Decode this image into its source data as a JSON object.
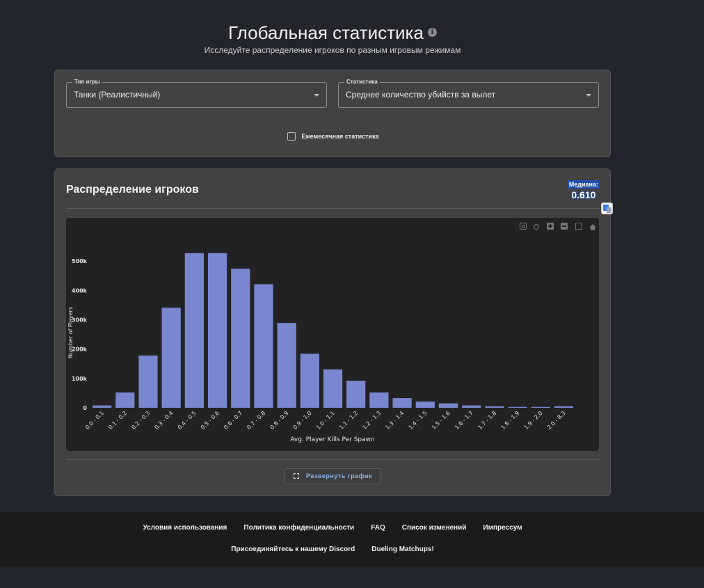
{
  "header": {
    "title": "Глобальная статистика",
    "info_icon": "i",
    "subtitle": "Исследуйте распределение игроков по разным игровым режимам"
  },
  "filters": {
    "game_type": {
      "label": "Тип игры",
      "value": "Танки (Реалистичный)"
    },
    "statistic": {
      "label": "Статистика",
      "value": "Среднее количество убийств за вылет"
    },
    "monthly": {
      "label": "Ежемесячная статистика",
      "checked": false
    }
  },
  "chart_card": {
    "heading": "Распределение игроков",
    "median_label": "Медиана:",
    "median_value": "0.610",
    "expand_label": "Развернуть график"
  },
  "colors": {
    "bar": "#7b86d1",
    "plot_bg": "#222222",
    "median_bg": "#1f4fa8",
    "link": "#8ab4e8"
  },
  "chart_data": {
    "type": "bar",
    "categories": [
      "0.0 - 0.1",
      "0.1 - 0.2",
      "0.2 - 0.3",
      "0.3 - 0.4",
      "0.4 - 0.5",
      "0.5 - 0.6",
      "0.6 - 0.7",
      "0.7 - 0.8",
      "0.8 - 0.9",
      "0.9 - 1.0",
      "1.0 - 1.1",
      "1.1 - 1.2",
      "1.2 - 1.3",
      "1.3 - 1.4",
      "1.4 - 1.5",
      "1.5 - 1.6",
      "1.6 - 1.7",
      "1.7 - 1.8",
      "1.8 - 1.9",
      "1.9 - 2.0",
      "2.0 - 8.3"
    ],
    "values": [
      8000,
      52000,
      178000,
      341000,
      527000,
      527000,
      474000,
      421000,
      289000,
      184000,
      131000,
      92000,
      52000,
      33000,
      21000,
      15000,
      8000,
      5000,
      3000,
      3000,
      5000
    ],
    "xlabel": "Avg. Player Kills Per Spawn",
    "ylabel": "Number of Players",
    "ylim": [
      0,
      600000
    ],
    "yticks": [
      0,
      100000,
      200000,
      300000,
      400000,
      500000
    ],
    "ytick_labels": [
      "0",
      "100k",
      "200k",
      "300k",
      "400k",
      "500k"
    ],
    "grid": false
  },
  "footer": {
    "links_row1": [
      "Условия использования",
      "Политика конфиденциальности",
      "FAQ",
      "Список изменений",
      "Импрессум"
    ],
    "links_row2": [
      "Присоединяйтесь к нашему Discord",
      "Dueling Matchups!"
    ]
  }
}
